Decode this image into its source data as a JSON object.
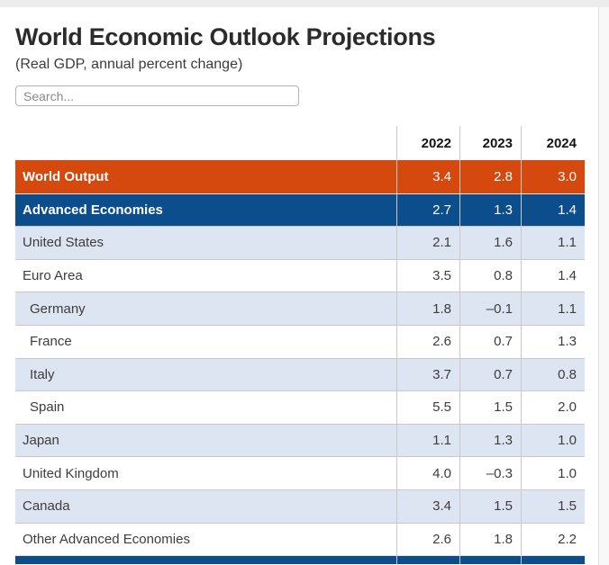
{
  "page": {
    "title": "World Economic Outlook Projections",
    "subtitle": "(Real GDP, annual percent change)"
  },
  "search": {
    "placeholder": "Search...",
    "value": ""
  },
  "colors": {
    "world_row": "#d5480e",
    "section_row": "#0c4d8c",
    "striped_row": "#dce5f1",
    "row_border": "#c9c9c9"
  },
  "table": {
    "columns": [
      "2022",
      "2023",
      "2024"
    ],
    "rows": [
      {
        "name": "World Output",
        "level": 0,
        "style": "world",
        "values": [
          "3.4",
          "2.8",
          "3.0"
        ]
      },
      {
        "name": "Advanced Economies",
        "level": 0,
        "style": "section",
        "values": [
          "2.7",
          "1.3",
          "1.4"
        ]
      },
      {
        "name": "United States",
        "level": 1,
        "style": "striped",
        "values": [
          "2.1",
          "1.6",
          "1.1"
        ]
      },
      {
        "name": "Euro Area",
        "level": 1,
        "style": "plain",
        "values": [
          "3.5",
          "0.8",
          "1.4"
        ]
      },
      {
        "name": "Germany",
        "level": 2,
        "style": "striped",
        "values": [
          "1.8",
          "–0.1",
          "1.1"
        ]
      },
      {
        "name": "France",
        "level": 2,
        "style": "plain",
        "values": [
          "2.6",
          "0.7",
          "1.3"
        ]
      },
      {
        "name": "Italy",
        "level": 2,
        "style": "striped",
        "values": [
          "3.7",
          "0.7",
          "0.8"
        ]
      },
      {
        "name": "Spain",
        "level": 2,
        "style": "plain",
        "values": [
          "5.5",
          "1.5",
          "2.0"
        ]
      },
      {
        "name": "Japan",
        "level": 1,
        "style": "striped",
        "values": [
          "1.1",
          "1.3",
          "1.0"
        ]
      },
      {
        "name": "United Kingdom",
        "level": 1,
        "style": "plain",
        "values": [
          "4.0",
          "–0.3",
          "1.0"
        ]
      },
      {
        "name": "Canada",
        "level": 1,
        "style": "striped",
        "values": [
          "3.4",
          "1.5",
          "1.5"
        ]
      },
      {
        "name": "Other Advanced Economies",
        "level": 1,
        "style": "plain",
        "values": [
          "2.6",
          "1.8",
          "2.2"
        ]
      }
    ]
  }
}
